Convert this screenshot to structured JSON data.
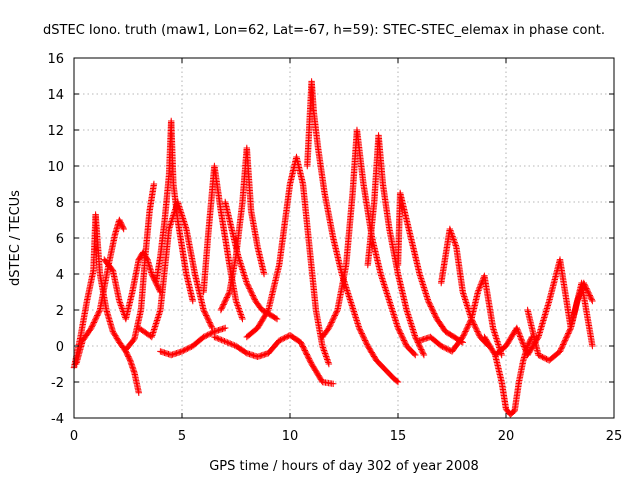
{
  "chart_data": {
    "type": "scatter",
    "title": "dSTEC Iono. truth (maw1, Lon=62, Lat=-67, h=59): STEC-STEC_elemax in phase cont.",
    "xlabel": "GPS time / hours of day 302 of year 2008",
    "ylabel": "dSTEC  / TECUs",
    "xlim": [
      0,
      25
    ],
    "ylim": [
      -4,
      16
    ],
    "xticks": [
      0,
      5,
      10,
      15,
      20,
      25
    ],
    "yticks": [
      -4,
      -2,
      0,
      2,
      4,
      6,
      8,
      10,
      12,
      14,
      16
    ],
    "grid": true,
    "marker": "+",
    "color": "#ff0000",
    "series": [
      {
        "x": [
          0.0,
          0.3,
          0.6,
          0.9,
          1.0,
          1.2,
          1.5,
          1.8,
          2.1,
          2.4,
          2.6,
          2.8,
          3.0
        ],
        "y": [
          -1.2,
          0.5,
          2.5,
          4.2,
          7.3,
          4.0,
          2.0,
          0.8,
          0.2,
          -0.3,
          -0.8,
          -1.5,
          -2.6
        ]
      },
      {
        "x": [
          0.1,
          0.4,
          0.8,
          1.2,
          1.6,
          1.9,
          2.1,
          2.3
        ],
        "y": [
          -1.0,
          0.3,
          1.0,
          2.0,
          4.5,
          6.2,
          7.0,
          6.5
        ]
      },
      {
        "x": [
          1.4,
          1.8,
          2.1,
          2.4,
          2.7,
          3.0,
          3.2,
          3.4,
          3.6,
          3.8,
          4.0
        ],
        "y": [
          4.8,
          4.2,
          2.5,
          1.5,
          3.0,
          4.8,
          5.2,
          4.8,
          4.0,
          3.5,
          3.0
        ]
      },
      {
        "x": [
          2.4,
          2.8,
          3.1,
          3.3,
          3.5,
          3.7
        ],
        "y": [
          -0.2,
          0.4,
          2.0,
          5.0,
          7.5,
          9.0
        ]
      },
      {
        "x": [
          3.8,
          4.0,
          4.2,
          4.4,
          4.5,
          4.6,
          4.8,
          5.0,
          5.2,
          5.5
        ],
        "y": [
          3.5,
          5.0,
          7.0,
          9.5,
          12.5,
          9.0,
          7.0,
          5.5,
          4.0,
          2.5
        ]
      },
      {
        "x": [
          3.0,
          3.6,
          4.0,
          4.4,
          4.8,
          5.2,
          5.6,
          6.0,
          6.4
        ],
        "y": [
          1.0,
          0.5,
          2.0,
          6.5,
          8.0,
          6.5,
          4.0,
          2.0,
          1.0
        ]
      },
      {
        "x": [
          4.0,
          4.5,
          5.0,
          5.5,
          6.0,
          6.5,
          7.0
        ],
        "y": [
          -0.3,
          -0.5,
          -0.3,
          0.0,
          0.5,
          0.8,
          1.0
        ]
      },
      {
        "x": [
          6.0,
          6.2,
          6.5,
          6.8,
          7.0,
          7.2,
          7.5,
          7.8
        ],
        "y": [
          3.0,
          6.0,
          10.0,
          7.5,
          6.0,
          4.5,
          2.5,
          1.5
        ]
      },
      {
        "x": [
          6.8,
          7.2,
          7.5,
          7.8,
          8.0,
          8.2,
          8.5,
          8.8
        ],
        "y": [
          2.0,
          3.0,
          5.0,
          8.0,
          11.0,
          7.5,
          5.5,
          4.0
        ]
      },
      {
        "x": [
          7.0,
          7.3,
          7.6,
          8.0,
          8.4,
          8.7,
          9.0,
          9.4
        ],
        "y": [
          8.0,
          6.5,
          5.0,
          3.5,
          2.5,
          2.0,
          1.8,
          1.5
        ]
      },
      {
        "x": [
          8.0,
          8.5,
          9.0,
          9.5,
          10.0,
          10.3,
          10.6,
          10.9,
          11.2,
          11.5,
          11.8
        ],
        "y": [
          0.5,
          1.0,
          2.0,
          4.5,
          9.0,
          10.5,
          9.0,
          5.5,
          2.0,
          0.0,
          -1.0
        ]
      },
      {
        "x": [
          6.5,
          7.5,
          8.0,
          8.5,
          9.0,
          9.5,
          10.0,
          10.5,
          11.0,
          11.5,
          12.0
        ],
        "y": [
          0.5,
          0.0,
          -0.4,
          -0.6,
          -0.4,
          0.3,
          0.6,
          0.2,
          -1.0,
          -2.0,
          -2.1
        ]
      },
      {
        "x": [
          10.8,
          11.0,
          11.1,
          11.3,
          11.6,
          12.0,
          12.4,
          12.8,
          13.2,
          13.6,
          14.0,
          14.4,
          14.8,
          15.0
        ],
        "y": [
          10.0,
          14.7,
          13.0,
          11.0,
          8.5,
          6.0,
          4.0,
          2.5,
          1.0,
          0.0,
          -0.8,
          -1.3,
          -1.8,
          -2.0
        ]
      },
      {
        "x": [
          11.5,
          11.8,
          12.2,
          12.6,
          12.9,
          13.1,
          13.4,
          13.8,
          14.2,
          14.6,
          15.0,
          15.4,
          15.8
        ],
        "y": [
          0.5,
          1.0,
          2.0,
          4.5,
          8.5,
          12.0,
          9.0,
          6.0,
          4.0,
          2.5,
          1.0,
          0.0,
          -0.5
        ]
      },
      {
        "x": [
          13.6,
          13.9,
          14.1,
          14.3,
          14.6,
          15.0,
          15.4,
          15.8,
          16.2
        ],
        "y": [
          4.5,
          8.0,
          11.7,
          9.0,
          6.5,
          4.0,
          2.0,
          0.5,
          -0.5
        ]
      },
      {
        "x": [
          15.0,
          15.1,
          15.3,
          15.6,
          16.0,
          16.4,
          16.8,
          17.2,
          17.6,
          18.0
        ],
        "y": [
          4.5,
          8.5,
          7.5,
          6.0,
          4.0,
          2.5,
          1.5,
          0.8,
          0.5,
          0.2
        ]
      },
      {
        "x": [
          16.0,
          16.5,
          17.0,
          17.5,
          18.0,
          18.4,
          18.7,
          19.0,
          19.4,
          19.8
        ],
        "y": [
          0.3,
          0.5,
          0.0,
          -0.3,
          0.5,
          1.5,
          3.0,
          3.9,
          1.0,
          -0.5
        ]
      },
      {
        "x": [
          17.0,
          17.4,
          17.7,
          18.0,
          18.4,
          18.8,
          19.2
        ],
        "y": [
          3.5,
          6.5,
          5.5,
          3.0,
          1.5,
          0.5,
          0.0
        ]
      },
      {
        "x": [
          19.5,
          19.8,
          20.0,
          20.2,
          20.4,
          20.6,
          20.8,
          21.0,
          21.2
        ],
        "y": [
          -0.5,
          -2.0,
          -3.5,
          -3.8,
          -3.6,
          -2.0,
          -0.8,
          0.0,
          0.5
        ]
      },
      {
        "x": [
          19.0,
          19.5,
          20.0,
          20.5,
          21.0,
          21.5,
          22.0,
          22.5,
          23.0,
          23.5,
          24.0
        ],
        "y": [
          0.5,
          -0.5,
          0.0,
          1.0,
          -0.5,
          0.5,
          2.5,
          4.8,
          1.0,
          3.5,
          0.0
        ]
      },
      {
        "x": [
          21.0,
          21.5,
          22.0,
          22.5,
          23.0,
          23.3,
          23.6,
          24.0
        ],
        "y": [
          2.0,
          -0.5,
          -0.8,
          -0.3,
          1.0,
          2.5,
          3.5,
          2.5
        ]
      }
    ]
  }
}
